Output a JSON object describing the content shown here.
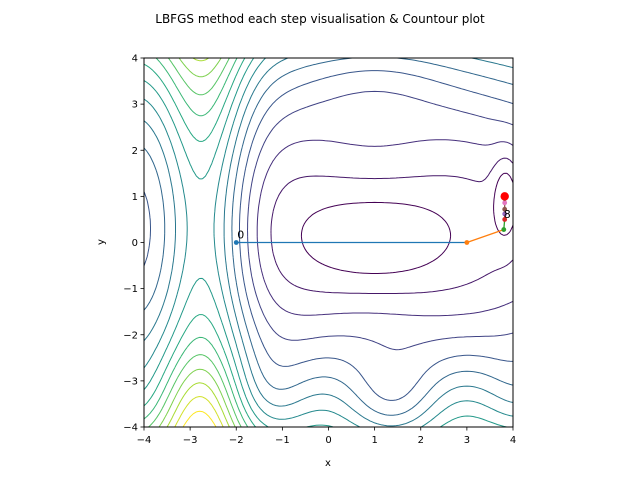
{
  "chart_data": {
    "type": "line",
    "title": "LBFGS method each step visualisation & Countour plot",
    "xlabel": "x",
    "ylabel": "y",
    "xlim": [
      -4,
      4
    ],
    "ylim": [
      -4,
      4
    ],
    "xticks": [
      "−4",
      "−3",
      "−2",
      "−1",
      "0",
      "1",
      "2",
      "3",
      "4"
    ],
    "yticks": [
      "−4",
      "−3",
      "−2",
      "−1",
      "0",
      "1",
      "2",
      "3",
      "4"
    ],
    "grid": false,
    "legend": "none",
    "contour_levels": 16,
    "colormap": "viridis",
    "path": {
      "x": [
        -2,
        3,
        3.8,
        3.82,
        3.82,
        3.82,
        3.82,
        3.82,
        3.82
      ],
      "y": [
        0,
        0,
        0.28,
        0.5,
        0.62,
        0.72,
        0.86,
        0.95,
        1.0
      ],
      "segment_colors": [
        "#1f77b4",
        "#ff7f0e",
        "#2ca02c",
        "#d62728",
        "#9467bd",
        "#8c564b",
        "#e377c2",
        "#7f7f7f"
      ]
    },
    "start_label": "0",
    "end_label": "8",
    "optimum": {
      "x": 3.82,
      "y": 1.0,
      "color": "#ff0000"
    }
  }
}
